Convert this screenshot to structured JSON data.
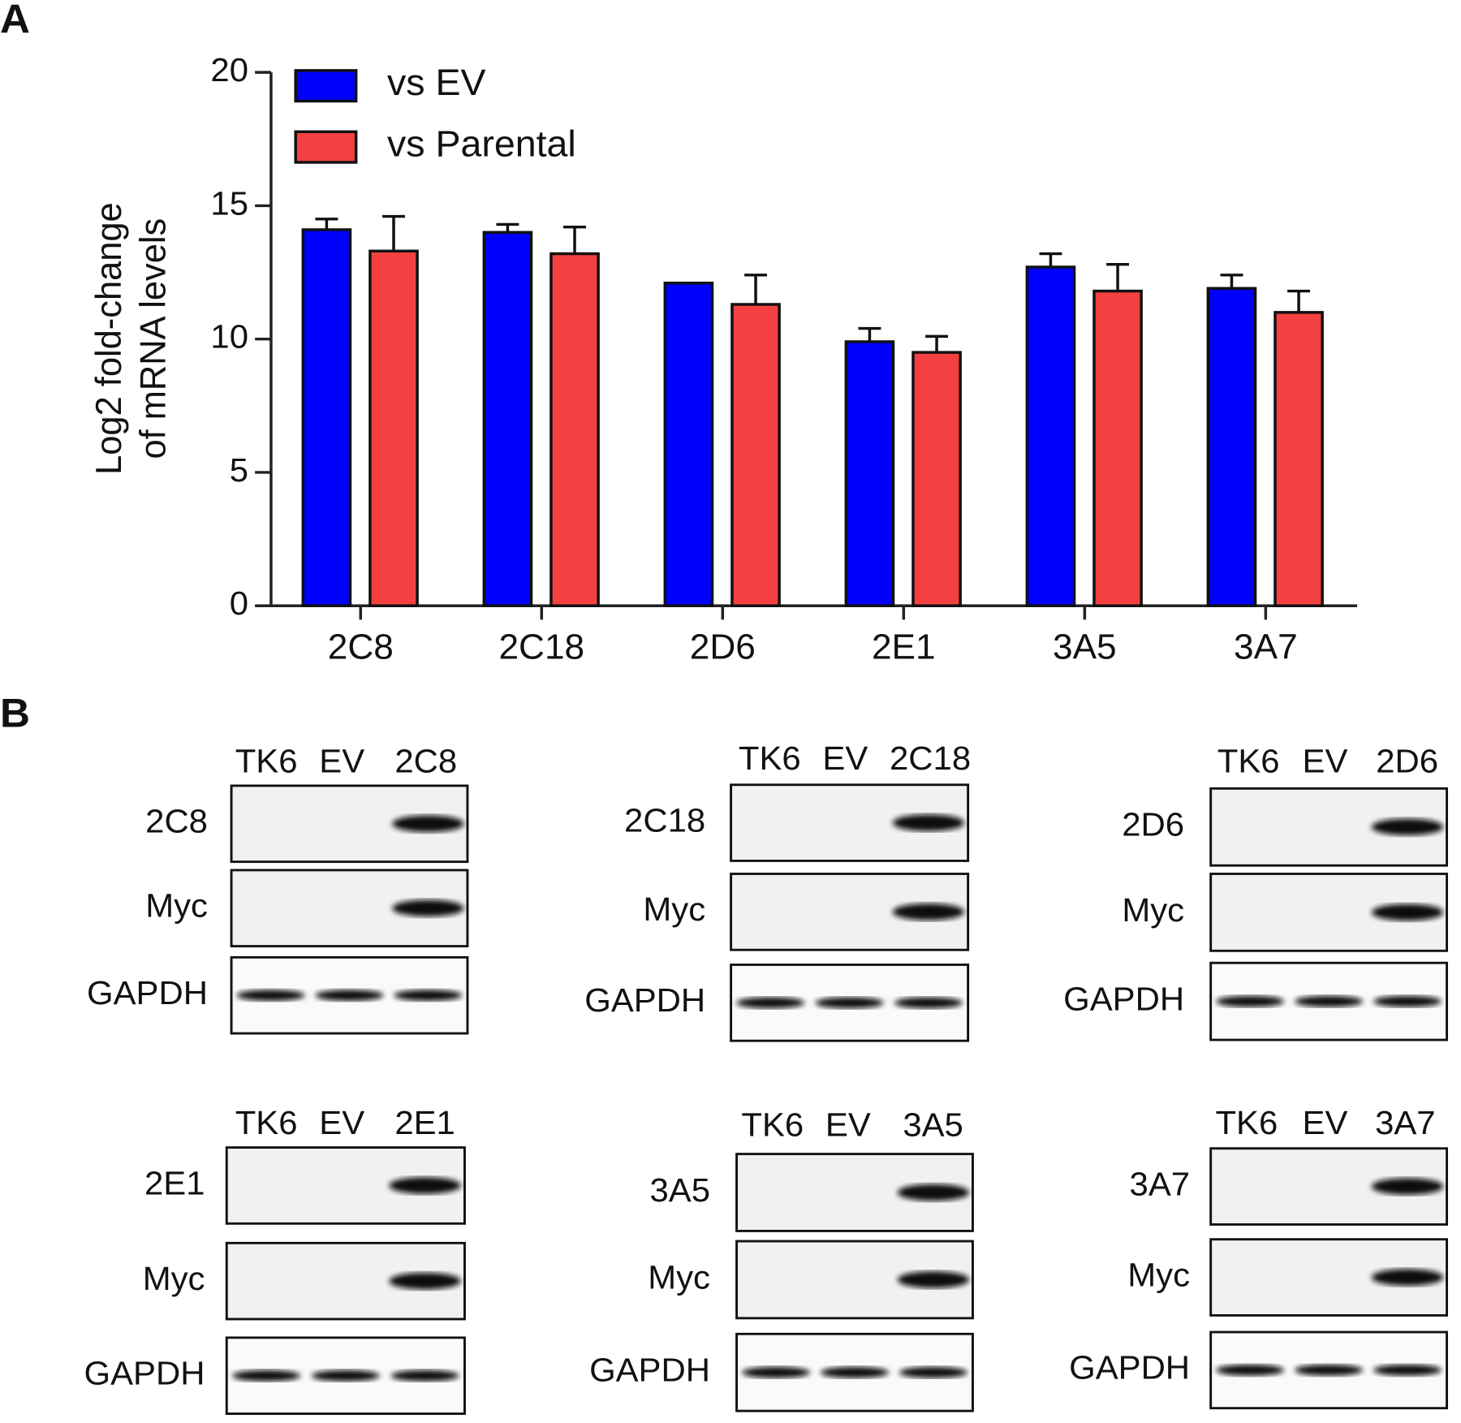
{
  "panel_labels": [
    "A",
    "B"
  ],
  "chart_data": {
    "type": "bar",
    "ylabel": [
      "Log2 fold-change",
      "of mRNA levels"
    ],
    "categories": [
      "2C8",
      "2C18",
      "2D6",
      "2E1",
      "3A5",
      "3A7"
    ],
    "series": [
      {
        "name": "vs EV",
        "color": "#0000ff",
        "values": [
          14.1,
          14.0,
          12.1,
          9.9,
          12.7,
          11.9
        ],
        "errors": [
          0.4,
          0.3,
          0,
          0.5,
          0.5,
          0.5
        ]
      },
      {
        "name": "vs Parental",
        "color": "#f44040",
        "values": [
          13.3,
          13.2,
          11.3,
          9.5,
          11.8,
          11.0
        ],
        "errors": [
          1.3,
          1.0,
          1.1,
          0.6,
          1.0,
          0.8
        ]
      }
    ],
    "ylim": [
      0,
      20
    ],
    "yticks": [
      0,
      5,
      10,
      15,
      20
    ],
    "legend": "upper left"
  },
  "blots": [
    {
      "lanes": [
        "TK6",
        "EV",
        "2C8"
      ],
      "rows": [
        "2C8",
        "Myc",
        "GAPDH"
      ]
    },
    {
      "lanes": [
        "TK6",
        "EV",
        "2C18"
      ],
      "rows": [
        "2C18",
        "Myc",
        "GAPDH"
      ]
    },
    {
      "lanes": [
        "TK6",
        "EV",
        "2D6"
      ],
      "rows": [
        "2D6",
        "Myc",
        "GAPDH"
      ]
    },
    {
      "lanes": [
        "TK6",
        "EV",
        "2E1"
      ],
      "rows": [
        "2E1",
        "Myc",
        "GAPDH"
      ]
    },
    {
      "lanes": [
        "TK6",
        "EV",
        "3A5"
      ],
      "rows": [
        "3A5",
        "Myc",
        "GAPDH"
      ]
    },
    {
      "lanes": [
        "TK6",
        "EV",
        "3A7"
      ],
      "rows": [
        "3A7",
        "Myc",
        "GAPDH"
      ]
    }
  ]
}
